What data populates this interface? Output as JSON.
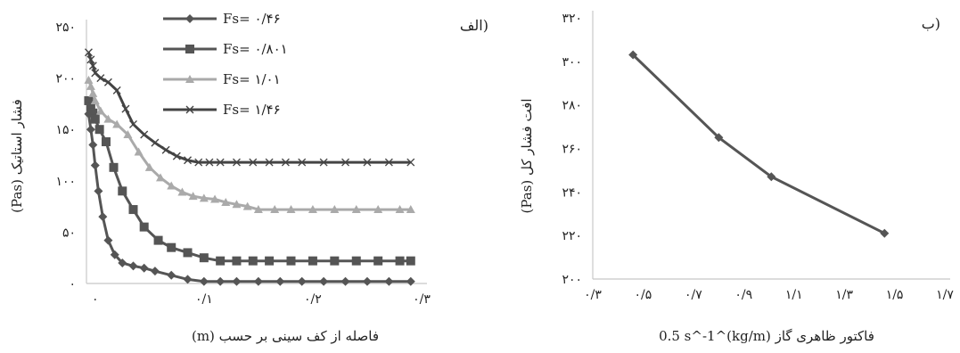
{
  "figure": {
    "left_panel": {
      "panel_label": "الف)",
      "ylabel": "فشار استاتیک (Pas)",
      "xlabel": "فاصله از کف سینی بر حسب (m)"
    },
    "right_panel": {
      "panel_label": "ب)",
      "ylabel": "افت فشار کل (Pas)",
      "xlabel": "فاکتور ظاهری گاز (kg/m)^0.5 s^-1"
    }
  },
  "chart_data": [
    {
      "type": "line",
      "title": "",
      "xlabel": "فاصله از کف سینی بر حسب (m)",
      "ylabel": "فشار استاتیک (Pas)",
      "panel_label": "الف)",
      "xlim": [
        -0.008,
        0.3
      ],
      "ylim": [
        0,
        250
      ],
      "x_ticks": [
        0,
        0.1,
        0.2,
        0.3
      ],
      "x_tick_labels": [
        "۰",
        "۰/۱",
        "۰/۲",
        "۰/۳"
      ],
      "y_ticks": [
        0,
        50,
        100,
        150,
        200,
        250
      ],
      "y_tick_labels": [
        "۰",
        "۵۰",
        "۱۰۰",
        "۱۵۰",
        "۲۰۰",
        "۲۵۰"
      ],
      "legend_position": "top-center",
      "series": [
        {
          "name": "Fs= ۰/۴۶",
          "marker": "diamond",
          "color": "#555555",
          "x": [
            -0.006,
            -0.004,
            -0.002,
            0.0,
            0.003,
            0.007,
            0.012,
            0.018,
            0.025,
            0.035,
            0.045,
            0.055,
            0.07,
            0.085,
            0.1,
            0.115,
            0.13,
            0.15,
            0.17,
            0.19,
            0.21,
            0.23,
            0.25,
            0.27,
            0.29
          ],
          "y": [
            165,
            150,
            135,
            115,
            90,
            65,
            42,
            28,
            20,
            17,
            15,
            12,
            8,
            4,
            2,
            2,
            2,
            2,
            2,
            2,
            2,
            2,
            2,
            2,
            2
          ]
        },
        {
          "name": "Fs= ۰/۸۰۱",
          "marker": "square",
          "color": "#555555",
          "x": [
            -0.006,
            -0.004,
            -0.002,
            0.0,
            0.004,
            0.01,
            0.017,
            0.025,
            0.035,
            0.045,
            0.058,
            0.07,
            0.085,
            0.1,
            0.115,
            0.13,
            0.145,
            0.16,
            0.18,
            0.2,
            0.22,
            0.24,
            0.26,
            0.28,
            0.29
          ],
          "y": [
            178,
            172,
            166,
            160,
            150,
            138,
            113,
            90,
            72,
            55,
            42,
            35,
            30,
            25,
            22,
            22,
            22,
            22,
            22,
            22,
            22,
            22,
            22,
            22,
            22
          ]
        },
        {
          "name": "Fs= ۱/۰۱",
          "marker": "triangle",
          "color": "#aaaaaa",
          "x": [
            -0.006,
            -0.004,
            -0.002,
            0.0,
            0.005,
            0.012,
            0.02,
            0.03,
            0.04,
            0.05,
            0.06,
            0.07,
            0.08,
            0.09,
            0.1,
            0.11,
            0.12,
            0.13,
            0.14,
            0.15,
            0.165,
            0.18,
            0.2,
            0.22,
            0.24,
            0.26,
            0.28,
            0.29
          ],
          "y": [
            198,
            192,
            185,
            178,
            168,
            160,
            155,
            145,
            128,
            113,
            103,
            95,
            89,
            85,
            83,
            82,
            79,
            77,
            75,
            72,
            72,
            72,
            72,
            72,
            72,
            72,
            72,
            72
          ]
        },
        {
          "name": "Fs= ۱/۴۶",
          "marker": "x",
          "color": "#444444",
          "x": [
            -0.006,
            -0.004,
            -0.002,
            0.0,
            0.005,
            0.012,
            0.02,
            0.028,
            0.035,
            0.045,
            0.055,
            0.065,
            0.075,
            0.085,
            0.095,
            0.105,
            0.115,
            0.13,
            0.145,
            0.16,
            0.175,
            0.19,
            0.21,
            0.23,
            0.25,
            0.27,
            0.29
          ],
          "y": [
            225,
            218,
            212,
            205,
            200,
            196,
            188,
            170,
            155,
            145,
            137,
            130,
            124,
            120,
            118,
            118,
            118,
            118,
            118,
            118,
            118,
            118,
            118,
            118,
            118,
            118,
            118
          ]
        }
      ]
    },
    {
      "type": "line",
      "title": "",
      "xlabel": "فاکتور ظاهری گاز (kg/m)^0.5 s^-1",
      "ylabel": "افت فشار کل (Pas)",
      "panel_label": "ب)",
      "xlim": [
        0.3,
        1.7
      ],
      "ylim": [
        200,
        320
      ],
      "x_ticks": [
        0.3,
        0.5,
        0.7,
        0.9,
        1.1,
        1.3,
        1.5,
        1.7
      ],
      "x_tick_labels": [
        "۰/۳",
        "۰/۵",
        "۰/۷",
        "۰/۹",
        "۱/۱",
        "۱/۳",
        "۱/۵",
        "۱/۷"
      ],
      "y_ticks": [
        200,
        220,
        240,
        260,
        280,
        300,
        320
      ],
      "y_tick_labels": [
        "۲۰۰",
        "۲۲۰",
        "۲۴۰",
        "۲۶۰",
        "۲۸۰",
        "۳۰۰",
        "۳۲۰"
      ],
      "series": [
        {
          "name": "",
          "marker": "diamond",
          "color": "#555555",
          "x": [
            0.46,
            0.801,
            1.01,
            1.46
          ],
          "y": [
            303,
            265,
            247,
            221
          ]
        }
      ]
    }
  ]
}
